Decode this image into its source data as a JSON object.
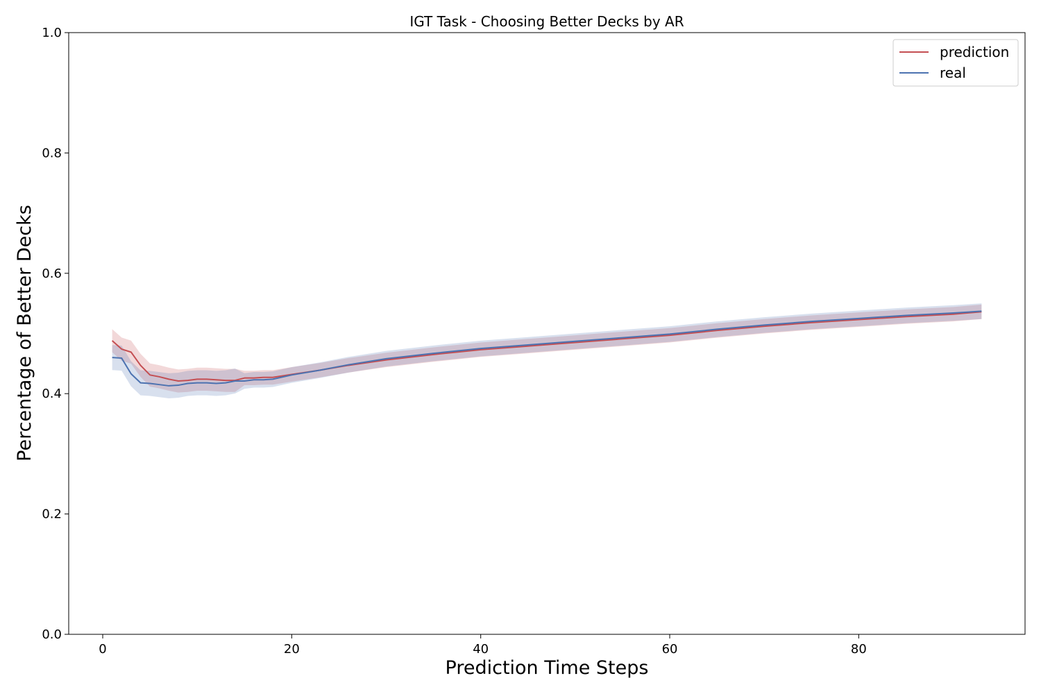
{
  "chart_data": {
    "type": "line",
    "title": "IGT Task - Choosing Better Decks by AR",
    "xlabel": "Prediction Time Steps",
    "ylabel": "Percentage of Better Decks",
    "xlim": [
      -3.6,
      97.6
    ],
    "ylim": [
      0.0,
      1.0
    ],
    "xticks": [
      0,
      20,
      40,
      60,
      80
    ],
    "yticks": [
      0.0,
      0.2,
      0.4,
      0.6,
      0.8,
      1.0
    ],
    "xtick_labels": [
      "0",
      "20",
      "40",
      "60",
      "80"
    ],
    "ytick_labels": [
      "0.0",
      "0.2",
      "0.4",
      "0.6",
      "0.8",
      "1.0"
    ],
    "grid": false,
    "legend_position": "top-right",
    "series": [
      {
        "name": "prediction",
        "color": "#c44e52",
        "x": [
          1,
          2,
          3,
          4,
          5,
          6,
          7,
          8,
          9,
          10,
          11,
          12,
          13,
          14,
          15,
          16,
          17,
          18,
          20,
          23,
          26,
          30,
          35,
          40,
          45,
          50,
          55,
          60,
          65,
          70,
          75,
          80,
          85,
          90,
          93
        ],
        "y": [
          0.488,
          0.474,
          0.469,
          0.447,
          0.431,
          0.428,
          0.424,
          0.421,
          0.422,
          0.424,
          0.424,
          0.423,
          0.422,
          0.422,
          0.426,
          0.426,
          0.427,
          0.427,
          0.432,
          0.439,
          0.447,
          0.456,
          0.465,
          0.473,
          0.479,
          0.485,
          0.491,
          0.497,
          0.505,
          0.512,
          0.518,
          0.523,
          0.528,
          0.532,
          0.536
        ],
        "band": 0.012
      },
      {
        "name": "real",
        "color": "#4c72b0",
        "x": [
          1,
          2,
          3,
          4,
          5,
          6,
          7,
          8,
          9,
          10,
          11,
          12,
          13,
          14,
          15,
          16,
          17,
          18,
          20,
          23,
          26,
          30,
          35,
          40,
          45,
          50,
          55,
          60,
          65,
          70,
          75,
          80,
          85,
          90,
          93
        ],
        "y": [
          0.46,
          0.459,
          0.433,
          0.418,
          0.417,
          0.415,
          0.413,
          0.414,
          0.417,
          0.418,
          0.418,
          0.417,
          0.418,
          0.421,
          0.421,
          0.423,
          0.423,
          0.424,
          0.431,
          0.439,
          0.448,
          0.458,
          0.467,
          0.475,
          0.481,
          0.487,
          0.493,
          0.499,
          0.507,
          0.514,
          0.52,
          0.525,
          0.53,
          0.534,
          0.537
        ],
        "band": 0.013
      }
    ]
  }
}
